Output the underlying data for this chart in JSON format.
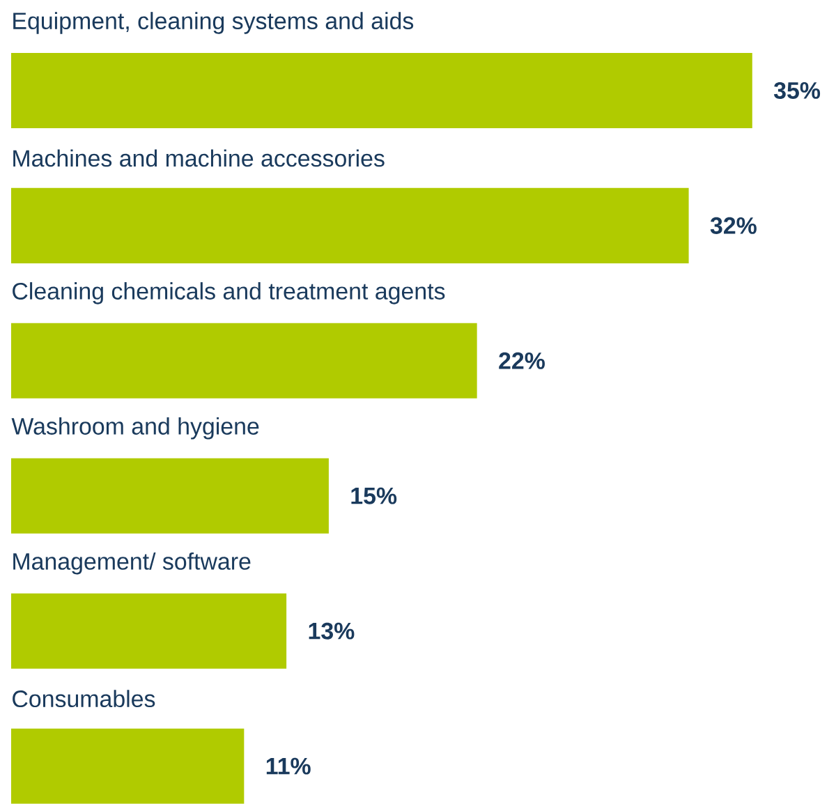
{
  "chart_data": {
    "type": "bar",
    "orientation": "horizontal",
    "categories": [
      "Equipment, cleaning systems and aids",
      "Machines and machine accessories",
      "Cleaning chemicals and treatment agents",
      "Washroom and hygiene",
      "Management/ software",
      "Consumables"
    ],
    "values": [
      35,
      32,
      22,
      15,
      13,
      11
    ],
    "value_labels": [
      "35%",
      "32%",
      "22%",
      "15%",
      "13%",
      "11%"
    ],
    "color": "#b0cb00"
  }
}
